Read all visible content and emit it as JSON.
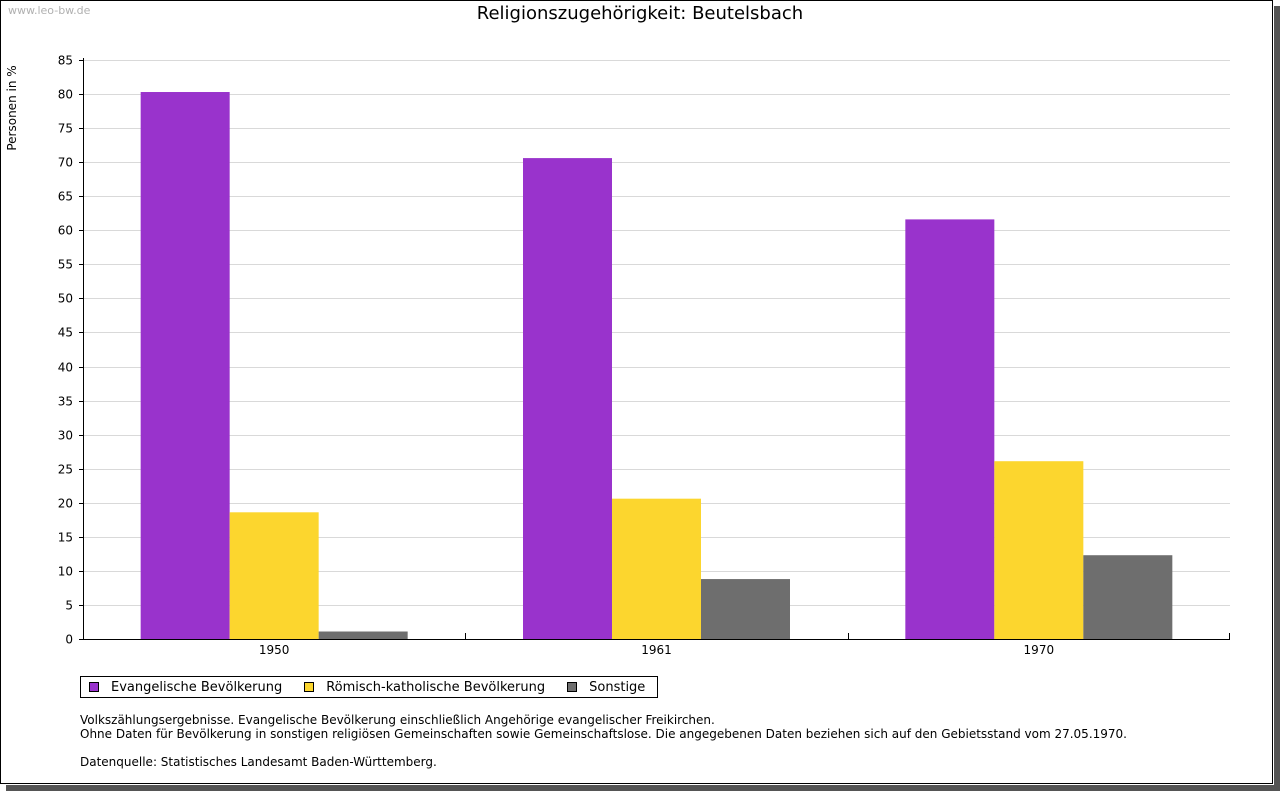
{
  "watermark": "www.leo-bw.de",
  "chart_data": {
    "type": "bar",
    "title": "Religionszugehörigkeit: Beutelsbach",
    "xlabel": "",
    "ylabel": "Personen in %",
    "categories": [
      "1950",
      "1961",
      "1970"
    ],
    "ylim": [
      0,
      85
    ],
    "yticks": [
      0,
      5,
      10,
      15,
      20,
      25,
      30,
      35,
      40,
      45,
      50,
      55,
      60,
      65,
      70,
      75,
      80,
      85
    ],
    "grid": true,
    "legend_position": "bottom-left",
    "series": [
      {
        "name": "Evangelische Bevölkerung",
        "color": "#9933cc",
        "values": [
          80.3,
          70.6,
          61.6
        ]
      },
      {
        "name": "Römisch-katholische Bevölkerung",
        "color": "#fcd62e",
        "values": [
          18.6,
          20.6,
          26.1
        ]
      },
      {
        "name": "Sonstige",
        "color": "#6e6e6e",
        "values": [
          1.1,
          8.8,
          12.3
        ]
      }
    ]
  },
  "notes": {
    "line1": "Volkszählungsergebnisse. Evangelische Bevölkerung einschließlich Angehörige evangelischer Freikirchen.",
    "line2": "Ohne Daten für Bevölkerung in sonstigen religiösen Gemeinschaften sowie Gemeinschaftslose. Die angegebenen Daten beziehen sich auf den Gebietsstand vom 27.05.1970.",
    "source": "Datenquelle: Statistisches Landesamt Baden-Württemberg."
  }
}
